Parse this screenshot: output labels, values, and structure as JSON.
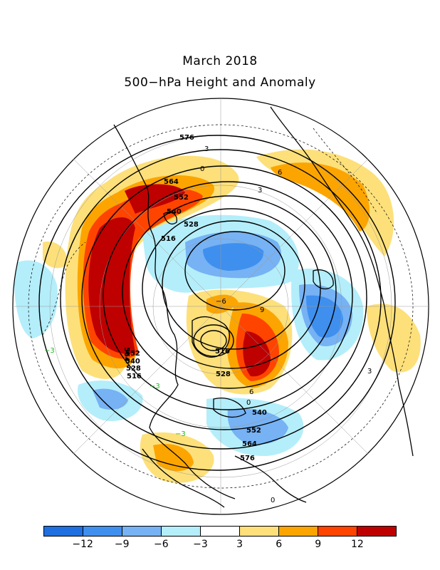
{
  "title": {
    "line1": "March 2018",
    "line2": "500−hPa Height and Anomaly"
  },
  "colorbar": {
    "colors": [
      "#1f6fe0",
      "#3f8fee",
      "#76b2f4",
      "#b4eefa",
      "#ffffff",
      "#fde07a",
      "#fca500",
      "#ff4400",
      "#bf0000"
    ],
    "tick_labels": [
      "−12",
      "−9",
      "−6",
      "−3",
      "3",
      "6",
      "9",
      "12"
    ]
  },
  "height_contour_labels": [
    "576",
    "564",
    "552",
    "540",
    "528",
    "516",
    "564",
    "552",
    "540",
    "528",
    "516",
    "516",
    "528",
    "540",
    "552",
    "564",
    "576"
  ],
  "anomaly_contour_labels": [
    "0",
    "3",
    "6",
    "−3",
    "−6",
    "9",
    "3",
    "3",
    "−3",
    "0",
    "6",
    "0",
    "−3"
  ],
  "map_colors": {
    "land_outline": "#000000",
    "height_contour": "#000000",
    "anomaly_positive": "#000000",
    "anomaly_negative": "#22bb22"
  }
}
